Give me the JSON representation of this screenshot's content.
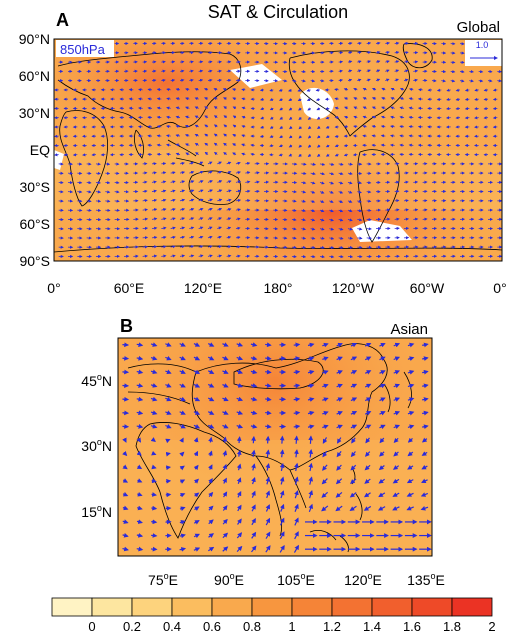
{
  "figure": {
    "title": "SAT & Circulation",
    "panel_a": {
      "letter": "A",
      "region": "Global",
      "level": "850hPa",
      "ref_vector": "1.0",
      "lat_labels": [
        "90°N",
        "60°N",
        "30°N",
        "EQ",
        "30°S",
        "60°S",
        "90°S"
      ],
      "lon_labels": [
        "0°",
        "60°E",
        "120°E",
        "180°",
        "120°W",
        "60°W",
        "0°"
      ]
    },
    "panel_b": {
      "letter": "B",
      "region": "Asian",
      "lat_labels": [
        {
          "value": "45",
          "sup": "o",
          "hemi": "N"
        },
        {
          "value": "30",
          "sup": "o",
          "hemi": "N"
        },
        {
          "value": "15",
          "sup": "o",
          "hemi": "N"
        }
      ],
      "lon_labels": [
        {
          "value": "75",
          "sup": "o",
          "hemi": "E"
        },
        {
          "value": "90",
          "sup": "o",
          "hemi": "E"
        },
        {
          "value": "105",
          "sup": "o",
          "hemi": "E"
        },
        {
          "value": "120",
          "sup": "o",
          "hemi": "E"
        },
        {
          "value": "135",
          "sup": "o",
          "hemi": "E"
        }
      ]
    },
    "colorbar": {
      "labels": [
        "0",
        "0.2",
        "0.4",
        "0.6",
        "0.8",
        "1",
        "1.2",
        "1.4",
        "1.6",
        "1.8",
        "2"
      ],
      "colors": [
        "#fff3c4",
        "#fde6a0",
        "#fdd37d",
        "#fbbd5f",
        "#f9a94d",
        "#f7963f",
        "#f58437",
        "#f37232",
        "#f15f2d",
        "#ee4a28",
        "#eb3324"
      ]
    },
    "style": {
      "vector_color": "#2b2bd9",
      "land_outline": "#000000",
      "snow_patch": "#ffffff"
    }
  }
}
